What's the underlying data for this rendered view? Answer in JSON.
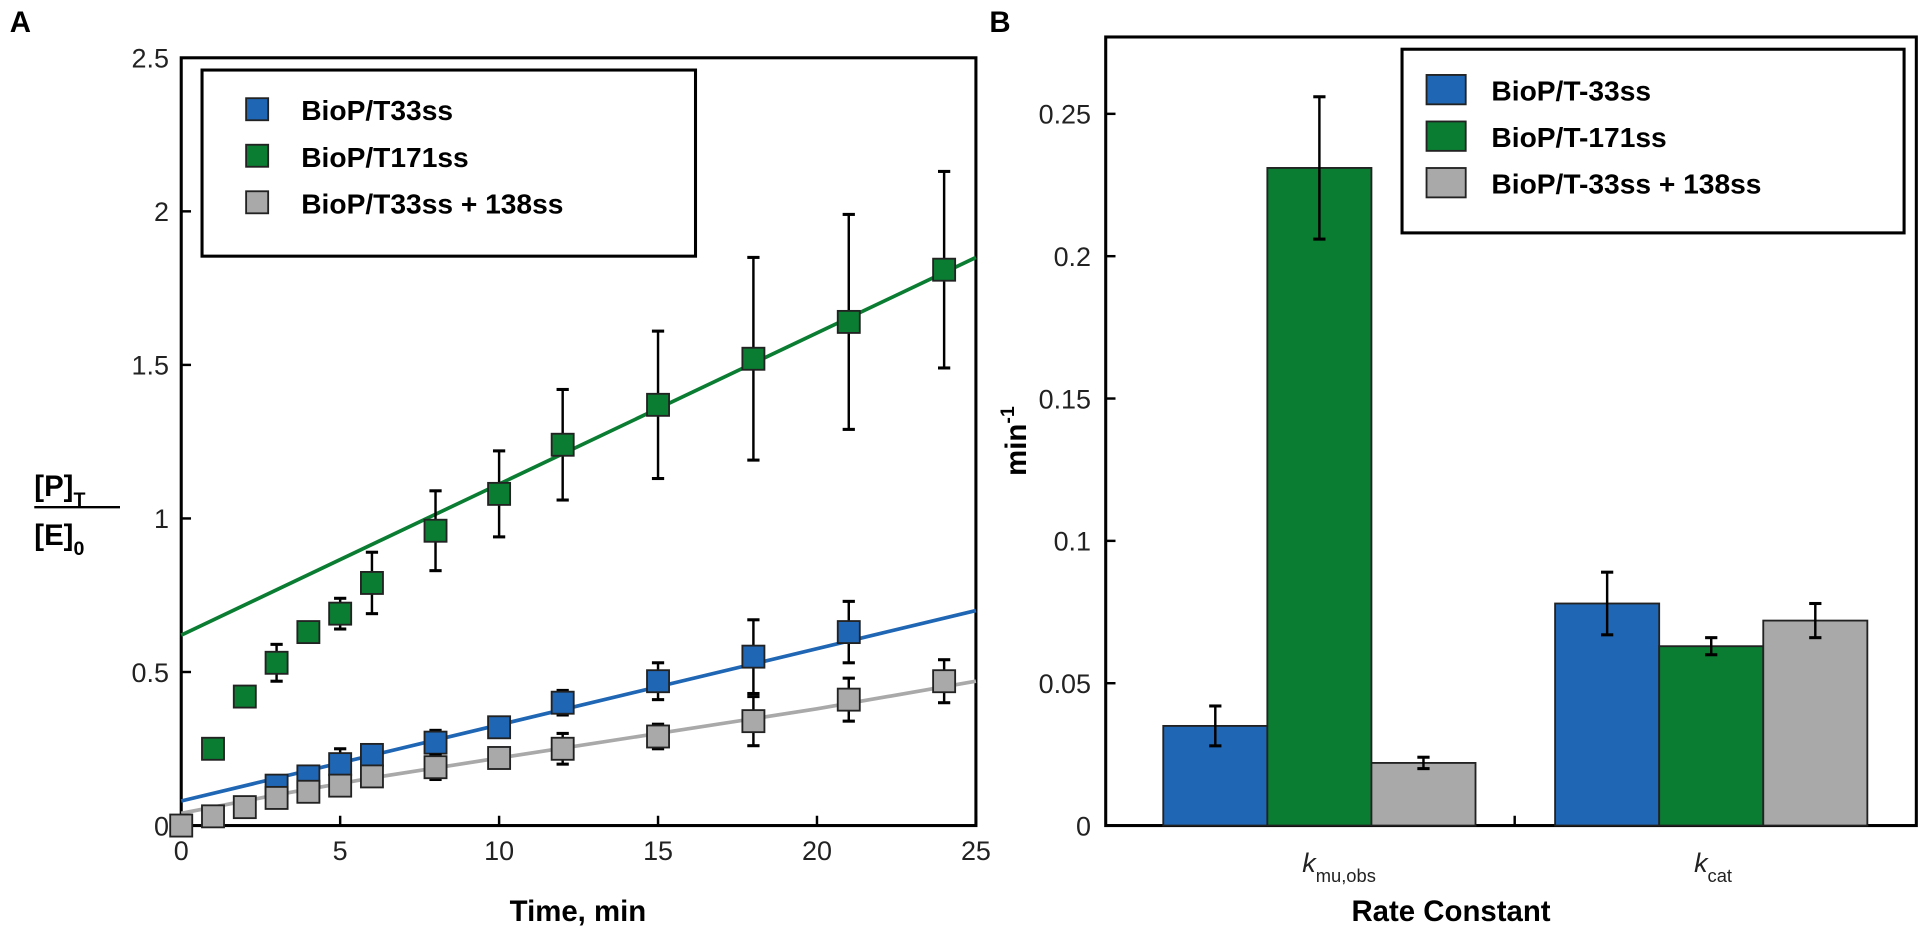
{
  "chart_data": [
    {
      "type": "scatter",
      "panel_label": "A",
      "xlabel": "Time, min",
      "ylabel": {
        "numerator": "[P]",
        "numerator_sub": "T",
        "denominator": "[E]",
        "denominator_sub": "0"
      },
      "xlim": [
        0,
        25
      ],
      "ylim": [
        0,
        2.5
      ],
      "xticks": [
        0,
        5,
        10,
        15,
        20,
        25
      ],
      "yticks": [
        0,
        0.5,
        1,
        1.5,
        2,
        2.5
      ],
      "ytick_labels": [
        "0",
        "0.5",
        "1",
        "1.5",
        "2",
        "2.5"
      ],
      "grid": false,
      "legend_position": "top-left",
      "series": [
        {
          "name": "BioP/T33ss",
          "color": "#1f66b5",
          "x": [
            3,
            4,
            5,
            6,
            8,
            10,
            12,
            15,
            18,
            21
          ],
          "y": [
            0.13,
            0.16,
            0.2,
            0.23,
            0.27,
            0.32,
            0.4,
            0.47,
            0.55,
            0.63
          ],
          "err": [
            0.03,
            0.03,
            0.05,
            0.03,
            0.04,
            0.03,
            0.04,
            0.06,
            0.12,
            0.1
          ],
          "fit": {
            "x": [
              0,
              25
            ],
            "y": [
              0.08,
              0.7
            ]
          }
        },
        {
          "name": "BioP/T171ss",
          "color": "#0a7d32",
          "x": [
            1,
            2,
            3,
            4,
            5,
            6,
            8,
            10,
            12,
            15,
            18,
            21,
            24
          ],
          "y": [
            0.25,
            0.42,
            0.53,
            0.63,
            0.69,
            0.79,
            0.96,
            1.08,
            1.24,
            1.37,
            1.52,
            1.64,
            1.81
          ],
          "err": [
            0,
            0,
            0.06,
            0,
            0.05,
            0.1,
            0.13,
            0.14,
            0.18,
            0.24,
            0.33,
            0.35,
            0.32
          ],
          "fit": {
            "x": [
              0,
              25
            ],
            "y": [
              0.62,
              1.85
            ]
          }
        },
        {
          "name": "BioP/T33ss + 138ss",
          "color": "#a9a9a9",
          "x": [
            0,
            1,
            2,
            3,
            4,
            5,
            6,
            8,
            10,
            12,
            15,
            18,
            21,
            24
          ],
          "y": [
            0,
            0.03,
            0.06,
            0.09,
            0.11,
            0.13,
            0.16,
            0.19,
            0.22,
            0.25,
            0.29,
            0.34,
            0.41,
            0.47
          ],
          "err": [
            0,
            0,
            0,
            0.02,
            0.02,
            0.03,
            0.03,
            0.04,
            0.03,
            0.05,
            0.04,
            0.08,
            0.07,
            0.07
          ],
          "fit": {
            "x": [
              0,
              3,
              6,
              10,
              15,
              20,
              25
            ],
            "y": [
              0.04,
              0.1,
              0.155,
              0.22,
              0.3,
              0.38,
              0.47
            ]
          }
        }
      ]
    },
    {
      "type": "bar",
      "panel_label": "B",
      "xlabel": "Rate Constant",
      "ylabel": {
        "base": "min",
        "sup": "-1"
      },
      "categories": [
        {
          "base": "k",
          "sub": "mu,obs"
        },
        {
          "base": "k",
          "sub": "cat"
        }
      ],
      "ylim": [
        0,
        0.277
      ],
      "yticks": [
        0,
        0.05,
        0.1,
        0.15,
        0.2,
        0.25
      ],
      "ytick_labels": [
        "0",
        "0.05",
        "0.1",
        "0.15",
        "0.2",
        "0.25"
      ],
      "grid": false,
      "legend_position": "top-right",
      "series": [
        {
          "name": "BioP/T-33ss",
          "color": "#1f66b5",
          "values": [
            0.035,
            0.078
          ],
          "err": [
            0.007,
            0.011
          ]
        },
        {
          "name": "BioP/T-171ss",
          "color": "#0a7d32",
          "values": [
            0.231,
            0.063
          ],
          "err": [
            0.025,
            0.003
          ]
        },
        {
          "name": "BioP/T-33ss + 138ss",
          "color": "#a9a9a9",
          "values": [
            0.022,
            0.072
          ],
          "err": [
            0.002,
            0.006
          ]
        }
      ]
    }
  ]
}
